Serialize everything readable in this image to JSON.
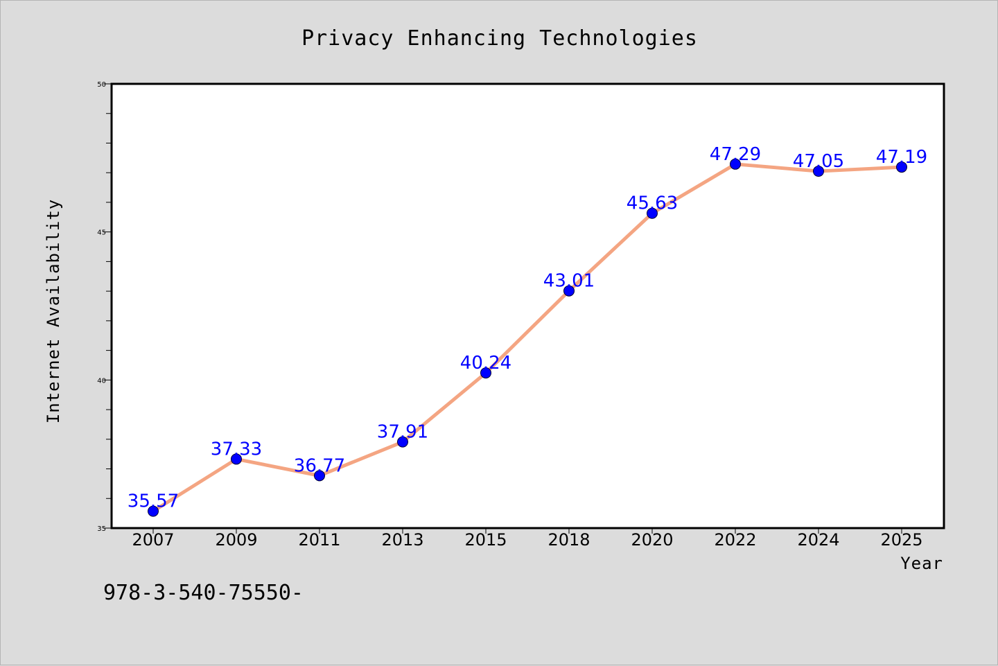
{
  "chart_data": {
    "type": "line",
    "title": "Privacy Enhancing Technologies",
    "xlabel": "Year",
    "ylabel": "Internet Availability",
    "categories": [
      "2007",
      "2009",
      "2011",
      "2013",
      "2015",
      "2018",
      "2020",
      "2022",
      "2024",
      "2025"
    ],
    "series": [
      {
        "values": [
          35.57,
          37.33,
          36.77,
          37.91,
          40.24,
          43.01,
          45.63,
          47.29,
          47.05,
          47.19
        ],
        "labels": [
          "35.57",
          "37.33",
          "36.77",
          "37.91",
          "40.24",
          "43.01",
          "45.63",
          "47.29",
          "47.05",
          "47.19"
        ],
        "line_color": "#f4a582",
        "marker_color": "#0000ff"
      }
    ],
    "ylim": [
      35,
      50
    ],
    "yticks": [
      "35",
      "40",
      "45",
      "50"
    ],
    "grid": false,
    "legend": "none"
  },
  "footer": {
    "text": "978-3-540-75550-"
  }
}
